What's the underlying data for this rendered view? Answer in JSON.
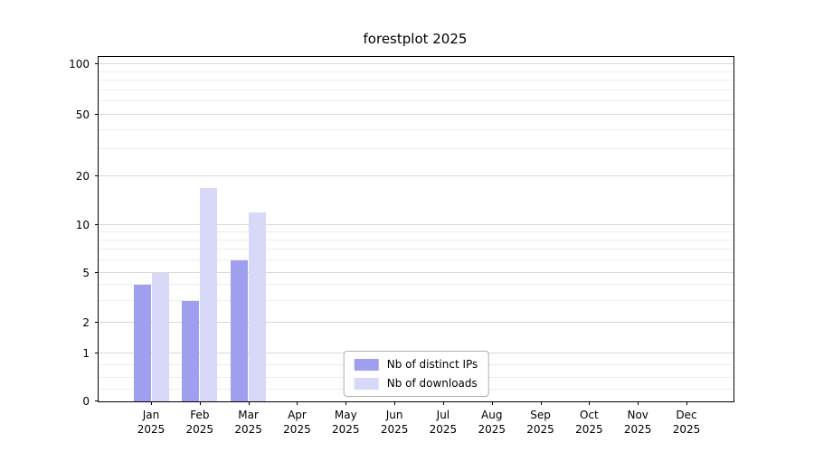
{
  "chart_data": {
    "type": "bar",
    "title": "forestplot 2025",
    "categories": [
      "Jan 2025",
      "Feb 2025",
      "Mar 2025",
      "Apr 2025",
      "May 2025",
      "Jun 2025",
      "Jul 2025",
      "Aug 2025",
      "Sep 2025",
      "Oct 2025",
      "Nov 2025",
      "Dec 2025"
    ],
    "series": [
      {
        "name": "Nb of distinct IPs",
        "color": "#9f9fef",
        "values": [
          4,
          3,
          6,
          0,
          0,
          0,
          0,
          0,
          0,
          0,
          0,
          0
        ]
      },
      {
        "name": "Nb of downloads",
        "color": "#d8d8f9",
        "values": [
          5,
          17,
          12,
          0,
          0,
          0,
          0,
          0,
          0,
          0,
          0,
          0
        ]
      }
    ],
    "y_axis": {
      "scale": "symlog",
      "ticks": [
        0,
        1,
        2,
        5,
        10,
        20,
        50,
        100
      ],
      "range": [
        0,
        100
      ]
    },
    "grid": "horizontal-minor",
    "legend_position": "lower center"
  }
}
